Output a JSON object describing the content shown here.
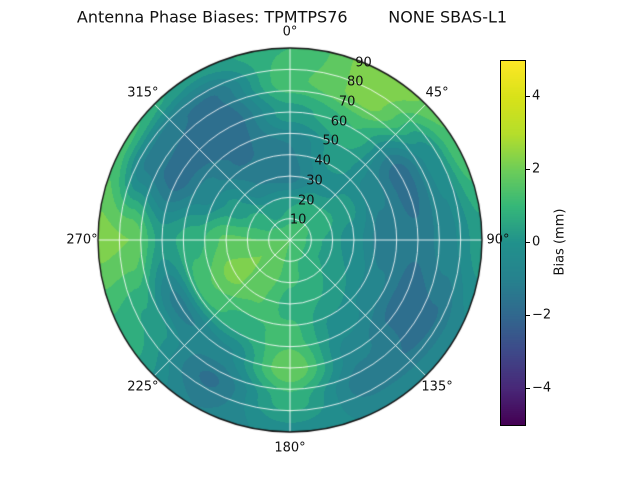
{
  "chart_data": {
    "type": "heatmap",
    "projection": "polar",
    "title": "Antenna Phase Biases: TPMTPS76        NONE SBAS-L1",
    "azimuth_ticks": [
      {
        "label": "0°",
        "deg": 0
      },
      {
        "label": "45°",
        "deg": 45
      },
      {
        "label": "90°",
        "deg": 90
      },
      {
        "label": "135°",
        "deg": 135
      },
      {
        "label": "180°",
        "deg": 180
      },
      {
        "label": "225°",
        "deg": 225
      },
      {
        "label": "270°",
        "deg": 270
      },
      {
        "label": "315°",
        "deg": 315
      }
    ],
    "radial_ticks": [
      {
        "label": "10",
        "zen": 10
      },
      {
        "label": "20",
        "zen": 20
      },
      {
        "label": "30",
        "zen": 30
      },
      {
        "label": "40",
        "zen": 40
      },
      {
        "label": "50",
        "zen": 50
      },
      {
        "label": "60",
        "zen": 60
      },
      {
        "label": "70",
        "zen": 70
      },
      {
        "label": "80",
        "zen": 80
      },
      {
        "label": "90",
        "zen": 90
      }
    ],
    "radial_label_angle_deg": 22.5,
    "grid": {
      "azimuth_step_deg": 45,
      "zenith_step_deg": 10,
      "color": "#ffffff"
    },
    "colorbar": {
      "label": "Bias (mm)",
      "min": -5,
      "max": 5,
      "ticks": [
        {
          "label": "4",
          "value": 4
        },
        {
          "label": "2",
          "value": 2
        },
        {
          "label": "0",
          "value": 0
        },
        {
          "label": "−2",
          "value": -2
        },
        {
          "label": "−4",
          "value": -4
        }
      ],
      "colormap": "viridis",
      "colormap_stops": [
        "#440154",
        "#482878",
        "#3e4989",
        "#31688e",
        "#26828e",
        "#21918c",
        "#35b779",
        "#6dcd59",
        "#b5de2b",
        "#d8e219",
        "#fde725"
      ]
    },
    "contour_level_step_mm": 0.5,
    "field": {
      "units": "mm",
      "azimuth_deg": [
        0,
        30,
        60,
        90,
        120,
        150,
        180,
        210,
        240,
        270,
        300,
        330
      ],
      "zenith_deg": [
        0,
        15,
        30,
        45,
        60,
        75,
        90
      ],
      "bias_mm": [
        [
          1.5,
          1.5,
          1.5,
          1.5,
          1.5,
          1.5,
          1.5,
          1.5,
          1.5,
          1.5,
          1.5,
          1.5
        ],
        [
          0.5,
          0.8,
          0.8,
          0.5,
          0.5,
          0.8,
          1.2,
          1.8,
          2.0,
          1.5,
          0.8,
          0.3
        ],
        [
          -1.2,
          -0.3,
          0.2,
          -0.3,
          0.0,
          0.5,
          0.8,
          1.6,
          2.2,
          1.6,
          0.2,
          -1.0
        ],
        [
          -1.0,
          0.3,
          -0.8,
          -1.4,
          -0.8,
          -0.2,
          1.2,
          0.8,
          1.4,
          0.8,
          -0.8,
          -1.6
        ],
        [
          0.3,
          1.0,
          -1.8,
          -1.4,
          -1.8,
          -0.8,
          2.0,
          -0.6,
          -1.2,
          0.3,
          -1.8,
          -2.0
        ],
        [
          1.4,
          2.2,
          -0.4,
          -0.6,
          -1.6,
          -1.4,
          0.8,
          -1.6,
          0.4,
          2.0,
          -1.2,
          -1.6
        ],
        [
          1.0,
          2.4,
          1.4,
          0.3,
          -0.6,
          -0.6,
          -0.2,
          -1.0,
          0.8,
          2.2,
          1.2,
          0.2
        ]
      ]
    }
  }
}
